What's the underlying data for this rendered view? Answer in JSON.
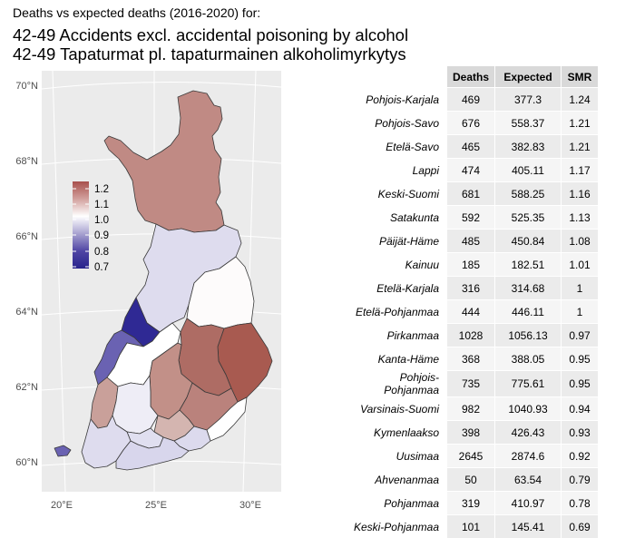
{
  "header": {
    "subtitle": "Deaths vs expected deaths (2016-2020) for:",
    "title_line1": "42-49 Accidents excl. accidental poisoning by alcohol",
    "title_line2": "42-49 Tapaturmat pl. tapaturmainen alkoholimyrkytys"
  },
  "map": {
    "lat_labels": [
      "70°N",
      "68°N",
      "66°N",
      "64°N",
      "62°N",
      "60°N"
    ],
    "lon_labels": [
      "20°E",
      "25°E",
      "30°E"
    ],
    "legend": {
      "labels": [
        "1.2",
        "1.1",
        "1.0",
        "0.9",
        "0.8",
        "0.7"
      ],
      "colors": [
        "#a8504c",
        "#d2a09d",
        "#ffffff",
        "#a8a2d0",
        "#4f45a4",
        "#28238c"
      ]
    },
    "region_colors": {
      "Lappi": "#c08a84",
      "Pohjois-Pohjanmaa": "#dedcee",
      "Kainuu": "#fdfbfb",
      "Pohjois-Karjala": "#a85a50",
      "Pohjois-Savo": "#ae6c64",
      "Etelä-Savo": "#ba827c",
      "Keski-Suomi": "#c29088",
      "Keski-Pohjanmaa": "#2f2994",
      "Pohjanmaa": "#6a62b2",
      "Etelä-Pohjanmaa": "#ffffff",
      "Satakunta": "#c9a09a",
      "Pirkanmaa": "#eeedf6",
      "Päijät-Häme": "#d4b5b0",
      "Kanta-Häme": "#e0dff0",
      "Varsinais-Suomi": "#dedcee",
      "Uusimaa": "#d8d6ec",
      "Kymenlaakso": "#dcdaed",
      "Etelä-Karjala": "#ffffff",
      "Ahvenanmaa": "#6a62b2"
    }
  },
  "table": {
    "headers": [
      "Deaths",
      "Expected",
      "SMR"
    ],
    "rows": [
      {
        "region": "Pohjois-Karjala",
        "deaths": "469",
        "expected": "377.3",
        "smr": "1.24"
      },
      {
        "region": "Pohjois-Savo",
        "deaths": "676",
        "expected": "558.37",
        "smr": "1.21"
      },
      {
        "region": "Etelä-Savo",
        "deaths": "465",
        "expected": "382.83",
        "smr": "1.21"
      },
      {
        "region": "Lappi",
        "deaths": "474",
        "expected": "405.11",
        "smr": "1.17"
      },
      {
        "region": "Keski-Suomi",
        "deaths": "681",
        "expected": "588.25",
        "smr": "1.16"
      },
      {
        "region": "Satakunta",
        "deaths": "592",
        "expected": "525.35",
        "smr": "1.13"
      },
      {
        "region": "Päijät-Häme",
        "deaths": "485",
        "expected": "450.84",
        "smr": "1.08"
      },
      {
        "region": "Kainuu",
        "deaths": "185",
        "expected": "182.51",
        "smr": "1.01"
      },
      {
        "region": "Etelä-Karjala",
        "deaths": "316",
        "expected": "314.68",
        "smr": "1"
      },
      {
        "region": "Etelä-Pohjanmaa",
        "deaths": "444",
        "expected": "446.11",
        "smr": "1"
      },
      {
        "region": "Pirkanmaa",
        "deaths": "1028",
        "expected": "1056.13",
        "smr": "0.97"
      },
      {
        "region": "Kanta-Häme",
        "deaths": "368",
        "expected": "388.05",
        "smr": "0.95"
      },
      {
        "region": "Pohjois-Pohjanmaa",
        "deaths": "735",
        "expected": "775.61",
        "smr": "0.95"
      },
      {
        "region": "Varsinais-Suomi",
        "deaths": "982",
        "expected": "1040.93",
        "smr": "0.94"
      },
      {
        "region": "Kymenlaakso",
        "deaths": "398",
        "expected": "426.43",
        "smr": "0.93"
      },
      {
        "region": "Uusimaa",
        "deaths": "2645",
        "expected": "2874.6",
        "smr": "0.92"
      },
      {
        "region": "Ahvenanmaa",
        "deaths": "50",
        "expected": "63.54",
        "smr": "0.79"
      },
      {
        "region": "Pohjanmaa",
        "deaths": "319",
        "expected": "410.97",
        "smr": "0.78"
      },
      {
        "region": "Keski-Pohjanmaa",
        "deaths": "101",
        "expected": "145.41",
        "smr": "0.69"
      }
    ]
  }
}
